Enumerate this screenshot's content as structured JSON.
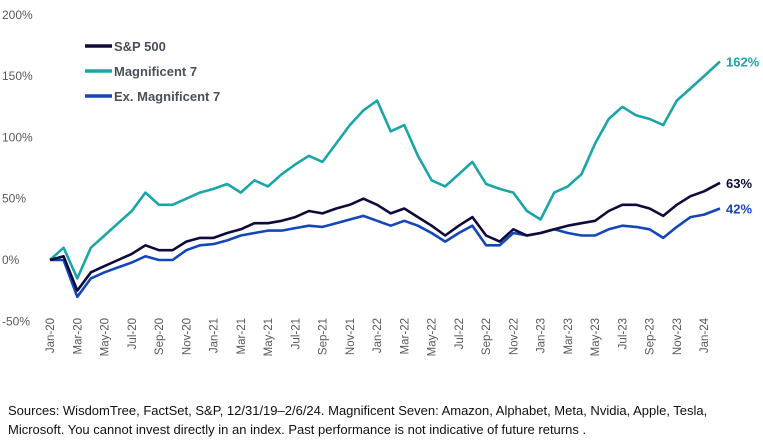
{
  "chart_data": {
    "type": "line",
    "title": "",
    "xlabel": "",
    "ylabel": "",
    "ylim": [
      -50,
      200
    ],
    "y_ticks": [
      -50,
      0,
      50,
      100,
      150,
      200
    ],
    "y_tick_labels": [
      "-50%",
      "0%",
      "50%",
      "100%",
      "150%",
      "200%"
    ],
    "x_tick_labels": [
      "Jan-20",
      "Mar-20",
      "May-20",
      "Jul-20",
      "Sep-20",
      "Nov-20",
      "Jan-21",
      "Mar-21",
      "May-21",
      "Jul-21",
      "Sep-21",
      "Nov-21",
      "Jan-22",
      "Mar-22",
      "May-22",
      "Jul-22",
      "Sep-22",
      "Nov-22",
      "Jan-23",
      "Mar-23",
      "May-23",
      "Jul-23",
      "Sep-23",
      "Nov-23",
      "Jan-24"
    ],
    "grid": false,
    "legend_placement": "top-left",
    "x": [
      "2019-12-31",
      "2020-02",
      "2020-03",
      "2020-04",
      "2020-05",
      "2020-06",
      "2020-07",
      "2020-08",
      "2020-09",
      "2020-10",
      "2020-11",
      "2020-12",
      "2021-01",
      "2021-02",
      "2021-03",
      "2021-04",
      "2021-05",
      "2021-06",
      "2021-07",
      "2021-08",
      "2021-09",
      "2021-10",
      "2021-11",
      "2021-12",
      "2022-01",
      "2022-02",
      "2022-03",
      "2022-04",
      "2022-05",
      "2022-06",
      "2022-07",
      "2022-08",
      "2022-09",
      "2022-10",
      "2022-11",
      "2022-12",
      "2023-01",
      "2023-02",
      "2023-03",
      "2023-04",
      "2023-05",
      "2023-06",
      "2023-07",
      "2023-08",
      "2023-09",
      "2023-10",
      "2023-11",
      "2023-12",
      "2024-01",
      "2024-02-06"
    ],
    "series": [
      {
        "name": "S&P 500",
        "color": "#0d0b3a",
        "end_label": "63%",
        "values": [
          0,
          3,
          -25,
          -10,
          -5,
          0,
          5,
          12,
          8,
          8,
          15,
          18,
          18,
          22,
          25,
          30,
          30,
          32,
          35,
          40,
          38,
          42,
          45,
          50,
          45,
          38,
          42,
          35,
          28,
          20,
          28,
          35,
          20,
          15,
          25,
          20,
          22,
          25,
          28,
          30,
          32,
          40,
          45,
          45,
          42,
          36,
          45,
          52,
          56,
          63
        ]
      },
      {
        "name": "Magnificent 7",
        "color": "#1aa5a8",
        "end_label": "162%",
        "values": [
          0,
          10,
          -15,
          10,
          20,
          30,
          40,
          55,
          45,
          45,
          50,
          55,
          58,
          62,
          55,
          65,
          60,
          70,
          78,
          85,
          80,
          95,
          110,
          122,
          130,
          105,
          110,
          85,
          65,
          60,
          70,
          80,
          62,
          58,
          55,
          40,
          33,
          55,
          60,
          70,
          95,
          115,
          125,
          118,
          115,
          110,
          130,
          140,
          150,
          162
        ]
      },
      {
        "name": "Ex. Magnificent 7",
        "color": "#1446b8",
        "end_label": "42%",
        "values": [
          0,
          0,
          -30,
          -15,
          -10,
          -6,
          -2,
          3,
          0,
          0,
          8,
          12,
          13,
          16,
          20,
          22,
          24,
          24,
          26,
          28,
          27,
          30,
          33,
          36,
          32,
          28,
          32,
          28,
          22,
          15,
          22,
          28,
          12,
          12,
          22,
          20,
          22,
          25,
          22,
          20,
          20,
          25,
          28,
          27,
          25,
          18,
          27,
          35,
          37,
          42
        ]
      }
    ]
  },
  "footer": {
    "source_text": "Sources: WisdomTree, FactSet, S&P, 12/31/19–2/6/24. Magnificent Seven: Amazon, Alphabet, Meta, Nvidia, Apple, Tesla, Microsoft. You cannot invest directly in an index. Past performance is not indicative of future returns ."
  }
}
